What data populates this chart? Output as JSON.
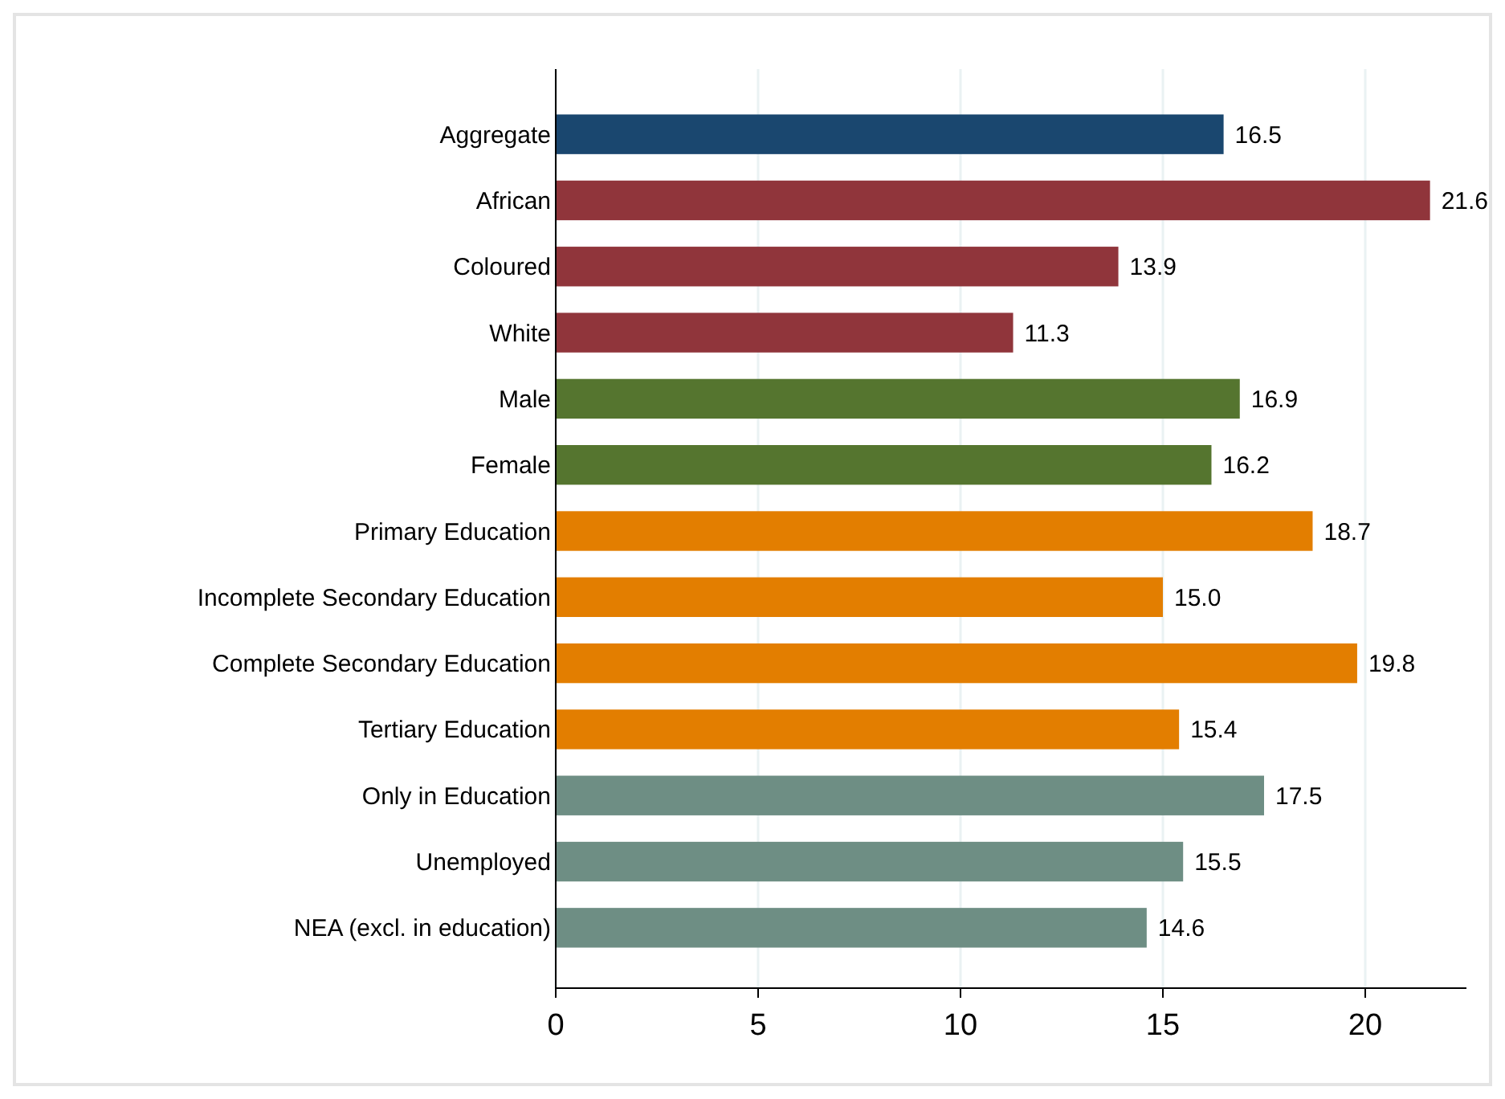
{
  "chart_data": {
    "type": "bar",
    "orientation": "horizontal",
    "categories": [
      "Aggregate",
      "African",
      "Coloured",
      "White",
      "Male",
      "Female",
      "Primary Education",
      "Incomplete Secondary Education",
      "Complete Secondary Education",
      "Tertiary Education",
      "Only in Education",
      "Unemployed",
      "NEA (excl. in education)"
    ],
    "values": [
      16.5,
      21.6,
      13.9,
      11.3,
      16.9,
      16.2,
      18.7,
      15.0,
      19.8,
      15.4,
      17.5,
      15.5,
      14.6
    ],
    "colors": [
      "#1a476f",
      "#90353b",
      "#90353b",
      "#90353b",
      "#55752f",
      "#55752f",
      "#e37e00",
      "#e37e00",
      "#e37e00",
      "#e37e00",
      "#6e8e84",
      "#6e8e84",
      "#6e8e84"
    ],
    "value_labels": [
      "16.5",
      "21.6",
      "13.9",
      "11.3",
      "16.9",
      "16.2",
      "18.7",
      "15.0",
      "19.8",
      "15.4",
      "17.5",
      "15.5",
      "14.6"
    ],
    "xlim": [
      0,
      22.5
    ],
    "xticks": [
      0,
      5,
      10,
      15,
      20
    ],
    "grid": "x"
  }
}
